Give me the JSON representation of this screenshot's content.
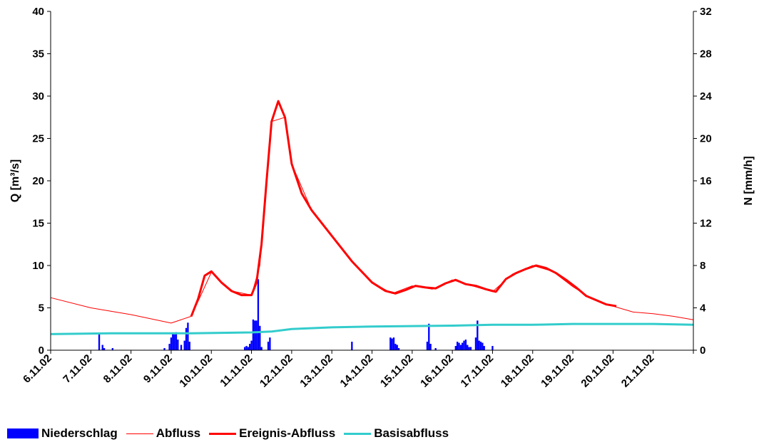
{
  "chart_data": {
    "type": "line+bar",
    "xlabel": "",
    "ylabel": "Q [m³/s]",
    "ylabel_right": "N [mm/h]",
    "ylim": [
      0,
      40
    ],
    "ylim_right": [
      0,
      32
    ],
    "yticks": [
      "0",
      "5",
      "10",
      "15",
      "20",
      "25",
      "30",
      "35",
      "40"
    ],
    "yticks_right": [
      "0",
      "4",
      "8",
      "12",
      "16",
      "20",
      "24",
      "28",
      "32"
    ],
    "x_range_days": [
      "6.11.02",
      "22.11.02"
    ],
    "x_ticks": [
      "6.11.02",
      "7.11.02",
      "8.11.02",
      "9.11.02",
      "10.11.02",
      "11.11.02",
      "12.11.02",
      "13.11.02",
      "14.11.02",
      "15.11.02",
      "16.11.02",
      "17.11.02",
      "18.11.02",
      "19.11.02",
      "20.11.02",
      "21.11.02"
    ],
    "grid": "none",
    "legend_position": "bottom",
    "series": [
      {
        "name": "Niederschlag",
        "type": "bar",
        "axis": "right",
        "color": "#0000FF",
        "points": [
          [
            "7.11.02 05:00",
            1.5
          ],
          [
            "7.11.02 07:00",
            0.5
          ],
          [
            "7.11.02 08:00",
            0.2
          ],
          [
            "7.11.02 13:00",
            0.2
          ],
          [
            "8.11.02 20:00",
            0.2
          ],
          [
            "8.11.02 23:00",
            0.6
          ],
          [
            "9.11.02 00:00",
            1.2
          ],
          [
            "9.11.02 01:00",
            1.6
          ],
          [
            "9.11.02 02:00",
            1.5
          ],
          [
            "9.11.02 03:00",
            1.7
          ],
          [
            "9.11.02 04:00",
            1.0
          ],
          [
            "9.11.02 06:00",
            0.5
          ],
          [
            "9.11.02 08:00",
            0.9
          ],
          [
            "9.11.02 09:00",
            2.1
          ],
          [
            "9.11.02 10:00",
            2.6
          ],
          [
            "9.11.02 11:00",
            0.8
          ],
          [
            "10.11.02 20:00",
            0.3
          ],
          [
            "10.11.02 21:00",
            0.4
          ],
          [
            "10.11.02 22:00",
            0.3
          ],
          [
            "10.11.02 23:00",
            0.6
          ],
          [
            "11.11.02 00:00",
            0.9
          ],
          [
            "11.11.02 01:00",
            2.9
          ],
          [
            "11.11.02 02:00",
            2.8
          ],
          [
            "11.11.02 03:00",
            2.8
          ],
          [
            "11.11.02 04:00",
            6.7
          ],
          [
            "11.11.02 05:00",
            2.3
          ],
          [
            "11.11.02 06:00",
            0.3
          ],
          [
            "11.11.02 10:00",
            0.8
          ],
          [
            "11.11.02 11:00",
            1.2
          ],
          [
            "13.11.02 12:00",
            0.8
          ],
          [
            "14.11.02 11:00",
            1.2
          ],
          [
            "14.11.02 12:00",
            1.1
          ],
          [
            "14.11.02 13:00",
            1.2
          ],
          [
            "14.11.02 14:00",
            0.6
          ],
          [
            "14.11.02 15:00",
            0.5
          ],
          [
            "14.11.02 16:00",
            0.2
          ],
          [
            "15.11.02 09:00",
            0.8
          ],
          [
            "15.11.02 10:00",
            2.5
          ],
          [
            "15.11.02 11:00",
            0.6
          ],
          [
            "15.11.02 14:00",
            0.2
          ],
          [
            "16.11.02 02:00",
            0.4
          ],
          [
            "16.11.02 03:00",
            0.8
          ],
          [
            "16.11.02 04:00",
            0.7
          ],
          [
            "16.11.02 05:00",
            0.5
          ],
          [
            "16.11.02 06:00",
            0.7
          ],
          [
            "16.11.02 07:00",
            0.9
          ],
          [
            "16.11.02 08:00",
            1.0
          ],
          [
            "16.11.02 09:00",
            0.5
          ],
          [
            "16.11.02 10:00",
            0.3
          ],
          [
            "16.11.02 11:00",
            0.3
          ],
          [
            "16.11.02 14:00",
            1.2
          ],
          [
            "16.11.02 15:00",
            2.8
          ],
          [
            "16.11.02 16:00",
            0.9
          ],
          [
            "16.11.02 17:00",
            0.8
          ],
          [
            "16.11.02 18:00",
            0.7
          ],
          [
            "16.11.02 19:00",
            0.4
          ],
          [
            "17.11.02 00:00",
            0.4
          ]
        ]
      },
      {
        "name": "Abfluss",
        "type": "line",
        "axis": "left",
        "color": "#FF0000",
        "points": [
          [
            "6.11.02 00:00",
            6.2
          ],
          [
            "7.11.02 00:00",
            5.0
          ],
          [
            "8.11.02 00:00",
            4.2
          ],
          [
            "9.11.02 00:00",
            3.2
          ],
          [
            "9.11.02 12:00",
            4.0
          ],
          [
            "10.11.02 00:00",
            9.2
          ],
          [
            "10.11.02 12:00",
            7.0
          ],
          [
            "11.11.02 00:00",
            6.5
          ],
          [
            "11.11.02 05:00",
            10.0
          ],
          [
            "11.11.02 12:00",
            27.0
          ],
          [
            "11.11.02 20:00",
            27.5
          ],
          [
            "12.11.02 00:00",
            22.0
          ],
          [
            "12.11.02 12:00",
            16.5
          ],
          [
            "13.11.02 00:00",
            13.5
          ],
          [
            "13.11.02 12:00",
            10.5
          ],
          [
            "14.11.02 00:00",
            8.0
          ],
          [
            "14.11.02 12:00",
            6.7
          ],
          [
            "15.11.02 00:00",
            7.6
          ],
          [
            "15.11.02 12:00",
            7.2
          ],
          [
            "16.11.02 00:00",
            8.3
          ],
          [
            "16.11.02 12:00",
            7.6
          ],
          [
            "17.11.02 00:00",
            6.9
          ],
          [
            "17.11.02 12:00",
            9.0
          ],
          [
            "18.11.02 00:00",
            10.0
          ],
          [
            "18.11.02 12:00",
            9.3
          ],
          [
            "19.11.02 00:00",
            7.5
          ],
          [
            "19.11.02 12:00",
            6.0
          ],
          [
            "20.11.02 00:00",
            5.2
          ],
          [
            "20.11.02 12:00",
            4.5
          ],
          [
            "21.11.02 00:00",
            4.3
          ],
          [
            "21.11.02 12:00",
            4.0
          ],
          [
            "22.11.02 00:00",
            3.6
          ]
        ]
      },
      {
        "name": "Ereignis-Abfluss",
        "type": "line",
        "axis": "left",
        "color": "#FF0000",
        "points": [
          [
            "9.11.02 12:00",
            4.0
          ],
          [
            "9.11.02 16:00",
            6.0
          ],
          [
            "9.11.02 20:00",
            8.8
          ],
          [
            "10.11.02 00:00",
            9.3
          ],
          [
            "10.11.02 06:00",
            8.0
          ],
          [
            "10.11.02 12:00",
            7.0
          ],
          [
            "10.11.02 18:00",
            6.5
          ],
          [
            "11.11.02 00:00",
            6.5
          ],
          [
            "11.11.02 03:00",
            8.0
          ],
          [
            "11.11.02 06:00",
            12.5
          ],
          [
            "11.11.02 09:00",
            20.0
          ],
          [
            "11.11.02 12:00",
            27.0
          ],
          [
            "11.11.02 16:00",
            29.4
          ],
          [
            "11.11.02 20:00",
            27.5
          ],
          [
            "12.11.02 00:00",
            22.0
          ],
          [
            "12.11.02 06:00",
            18.5
          ],
          [
            "12.11.02 12:00",
            16.5
          ],
          [
            "13.11.02 00:00",
            13.5
          ],
          [
            "13.11.02 12:00",
            10.5
          ],
          [
            "14.11.02 00:00",
            8.0
          ],
          [
            "14.11.02 08:00",
            7.0
          ],
          [
            "14.11.02 14:00",
            6.7
          ],
          [
            "14.11.02 20:00",
            7.1
          ],
          [
            "15.11.02 02:00",
            7.6
          ],
          [
            "15.11.02 08:00",
            7.4
          ],
          [
            "15.11.02 14:00",
            7.3
          ],
          [
            "15.11.02 20:00",
            7.9
          ],
          [
            "16.11.02 02:00",
            8.3
          ],
          [
            "16.11.02 08:00",
            7.8
          ],
          [
            "16.11.02 14:00",
            7.6
          ],
          [
            "16.11.02 20:00",
            7.2
          ],
          [
            "17.11.02 02:00",
            6.9
          ],
          [
            "17.11.02 08:00",
            8.4
          ],
          [
            "17.11.02 14:00",
            9.1
          ],
          [
            "17.11.02 20:00",
            9.6
          ],
          [
            "18.11.02 02:00",
            10.0
          ],
          [
            "18.11.02 08:00",
            9.7
          ],
          [
            "18.11.02 14:00",
            9.1
          ],
          [
            "18.11.02 20:00",
            8.3
          ],
          [
            "19.11.02 02:00",
            7.4
          ],
          [
            "19.11.02 08:00",
            6.4
          ],
          [
            "19.11.02 14:00",
            5.9
          ],
          [
            "19.11.02 20:00",
            5.4
          ],
          [
            "20.11.02 02:00",
            5.2
          ]
        ]
      },
      {
        "name": "Basisabfluss",
        "type": "line",
        "axis": "left",
        "color": "#33CCCC",
        "points": [
          [
            "6.11.02 00:00",
            1.9
          ],
          [
            "7.11.02 12:00",
            2.0
          ],
          [
            "8.11.02 12:00",
            2.0
          ],
          [
            "9.11.02 12:00",
            2.0
          ],
          [
            "11.11.02 00:00",
            2.1
          ],
          [
            "11.11.02 12:00",
            2.2
          ],
          [
            "12.11.02 00:00",
            2.5
          ],
          [
            "13.11.02 00:00",
            2.7
          ],
          [
            "14.11.02 00:00",
            2.8
          ],
          [
            "16.11.02 00:00",
            2.9
          ],
          [
            "17.11.02 00:00",
            3.0
          ],
          [
            "18.11.02 00:00",
            3.0
          ],
          [
            "19.11.02 00:00",
            3.1
          ],
          [
            "20.11.02 00:00",
            3.1
          ],
          [
            "21.11.02 00:00",
            3.1
          ],
          [
            "22.11.02 00:00",
            3.0
          ]
        ]
      }
    ]
  },
  "legend": {
    "items": [
      {
        "label": "Niederschlag",
        "swatch": "bar",
        "color": "#0000FF"
      },
      {
        "label": "Abfluss",
        "swatch": "thin-line",
        "color": "#FF0000"
      },
      {
        "label": "Ereignis-Abfluss",
        "swatch": "thick-line",
        "color": "#FF0000"
      },
      {
        "label": "Basisabfluss",
        "swatch": "thick-line",
        "color": "#33CCCC"
      }
    ]
  }
}
